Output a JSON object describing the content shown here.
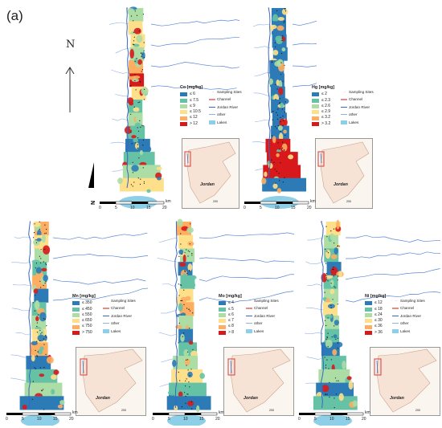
{
  "figure": {
    "panel_label": "(a)",
    "north_label": "N",
    "country_label": "Jordan",
    "inset_scale": {
      "value": "200",
      "unit": "km"
    },
    "scale_bar": {
      "ticks": [
        "0",
        "5",
        "10",
        "15",
        "20"
      ],
      "unit": "km"
    },
    "common_legend": [
      "Sampling Sites",
      "Channel",
      "Jordan River",
      "other",
      "Lakes"
    ]
  },
  "panels": [
    {
      "id": "co",
      "title": "Co [mg/kg]",
      "classes": [
        {
          "label": "≤ 6",
          "color": "#2c7bb6"
        },
        {
          "label": "≤ 7.5",
          "color": "#66c2a5"
        },
        {
          "label": "≤ 9",
          "color": "#abdda4"
        },
        {
          "label": "≤ 10.5",
          "color": "#fee08b"
        },
        {
          "label": "≤ 12",
          "color": "#fdae61"
        },
        {
          "label": "> 12",
          "color": "#d7191c"
        }
      ]
    },
    {
      "id": "hg",
      "title": "Hg [mg/kg]",
      "classes": [
        {
          "label": "≤ 2",
          "color": "#2c7bb6"
        },
        {
          "label": "≤ 2.3",
          "color": "#66c2a5"
        },
        {
          "label": "≤ 2.6",
          "color": "#abdda4"
        },
        {
          "label": "≤ 2.9",
          "color": "#fee08b"
        },
        {
          "label": "≤ 3.2",
          "color": "#fdae61"
        },
        {
          "label": "> 3.2",
          "color": "#d7191c"
        }
      ]
    },
    {
      "id": "mn",
      "title": "Mn [mg/kg]",
      "classes": [
        {
          "label": "≤ 350",
          "color": "#2c7bb6"
        },
        {
          "label": "≤ 450",
          "color": "#66c2a5"
        },
        {
          "label": "≤ 550",
          "color": "#abdda4"
        },
        {
          "label": "≤ 650",
          "color": "#fee08b"
        },
        {
          "label": "≤ 750",
          "color": "#fdae61"
        },
        {
          "label": "> 750",
          "color": "#d7191c"
        }
      ]
    },
    {
      "id": "mo",
      "title": "Mo [mg/kg]",
      "classes": [
        {
          "label": "≤ 4",
          "color": "#2c7bb6"
        },
        {
          "label": "≤ 5",
          "color": "#66c2a5"
        },
        {
          "label": "≤ 6",
          "color": "#abdda4"
        },
        {
          "label": "≤ 7",
          "color": "#fee08b"
        },
        {
          "label": "≤ 8",
          "color": "#fdae61"
        },
        {
          "label": "> 8",
          "color": "#d7191c"
        }
      ]
    },
    {
      "id": "ni",
      "title": "Ni [mg/kg]",
      "classes": [
        {
          "label": "≤ 12",
          "color": "#2c7bb6"
        },
        {
          "label": "≤ 18",
          "color": "#66c2a5"
        },
        {
          "label": "≤ 24",
          "color": "#abdda4"
        },
        {
          "label": "≤ 30",
          "color": "#fee08b"
        },
        {
          "label": "≤ 36",
          "color": "#fdae61"
        },
        {
          "label": "> 36",
          "color": "#d7191c"
        }
      ]
    }
  ]
}
